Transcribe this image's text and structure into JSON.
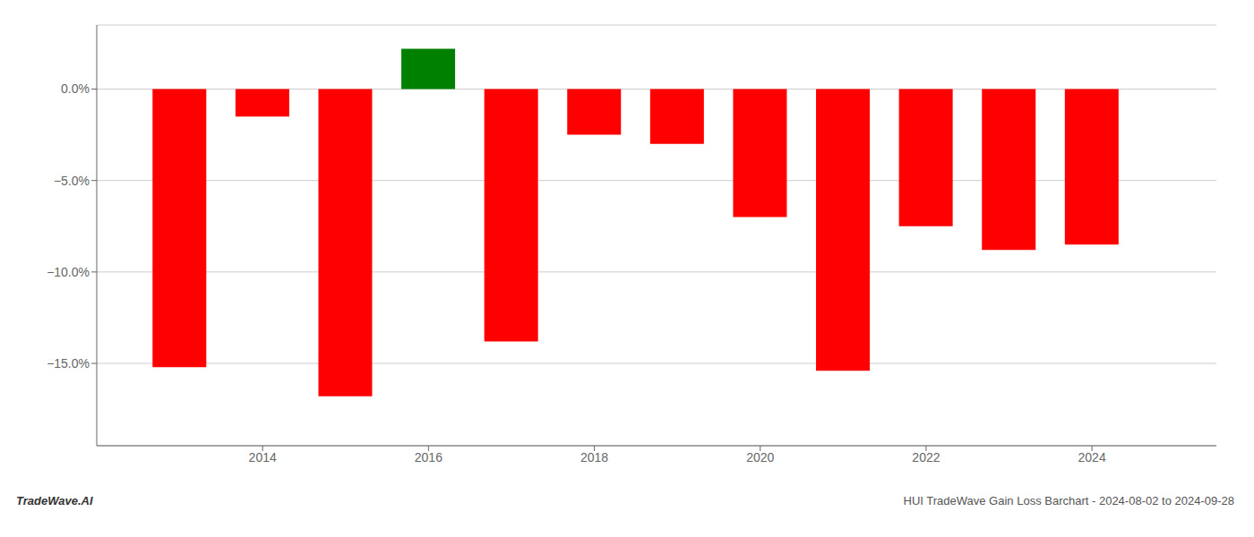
{
  "chart_data": {
    "type": "bar",
    "x": [
      2013,
      2014,
      2015,
      2016,
      2017,
      2018,
      2019,
      2020,
      2021,
      2022,
      2023,
      2024
    ],
    "values": [
      -15.2,
      -1.5,
      -16.8,
      2.2,
      -13.8,
      -2.5,
      -3.0,
      -7.0,
      -15.4,
      -7.5,
      -8.8,
      -8.5
    ],
    "colors": [
      "#ff0000",
      "#ff0000",
      "#ff0000",
      "#008000",
      "#ff0000",
      "#ff0000",
      "#ff0000",
      "#ff0000",
      "#ff0000",
      "#ff0000",
      "#ff0000",
      "#ff0000"
    ],
    "xlim": [
      2012.0,
      2025.5
    ],
    "xticks": [
      2014,
      2016,
      2018,
      2020,
      2022,
      2024
    ],
    "ylim": [
      -19.5,
      3.5
    ],
    "yticks": [
      {
        "value": 0.0,
        "label": "0.0%"
      },
      {
        "value": -5.0,
        "label": "−5.0%"
      },
      {
        "value": -10.0,
        "label": "−10.0%"
      },
      {
        "value": -15.0,
        "label": "−15.0%"
      }
    ],
    "grid": true,
    "annotations": [
      "TradeWave.AI",
      "HUI TradeWave Gain Loss Barchart - 2024-08-02 to 2024-09-28"
    ]
  }
}
